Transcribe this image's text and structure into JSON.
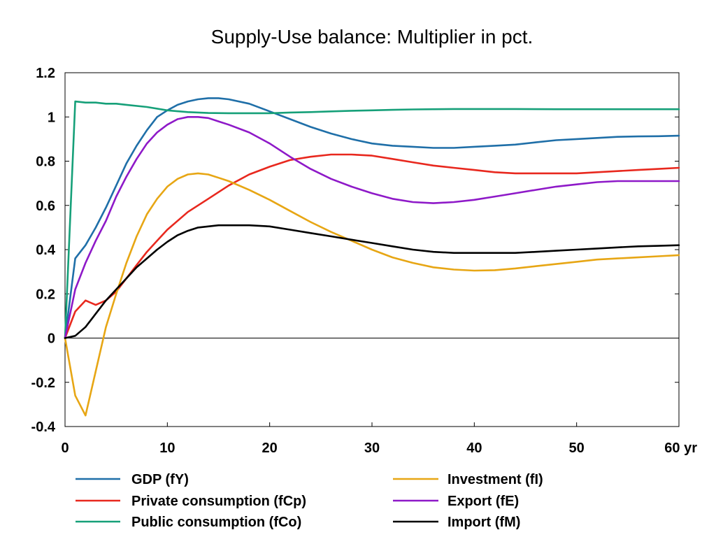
{
  "chart_data": {
    "type": "line",
    "title": "Supply-Use balance: Multiplier in pct.",
    "x_unit_label": "yr",
    "xlim": [
      0,
      60
    ],
    "ylim": [
      -0.4,
      1.2
    ],
    "x_ticks": [
      0,
      10,
      20,
      30,
      40,
      50,
      60
    ],
    "x_tick_labels": [
      "0",
      "10",
      "20",
      "30",
      "40",
      "50",
      "60 yr"
    ],
    "y_ticks": [
      -0.4,
      -0.2,
      0,
      0.2,
      0.4,
      0.6,
      0.8,
      1,
      1.2
    ],
    "y_tick_labels": [
      "-0.4",
      "-0.2",
      "0",
      "0.2",
      "0.4",
      "0.6",
      "0.8",
      "1",
      "1.2"
    ],
    "grid": false,
    "zero_line": true,
    "legend_position": "bottom",
    "series": [
      {
        "name": "GDP (fY)",
        "color": "#1f6fa8",
        "x": [
          0,
          1,
          2,
          3,
          4,
          5,
          6,
          7,
          8,
          9,
          10,
          11,
          12,
          13,
          14,
          15,
          16,
          18,
          20,
          22,
          24,
          26,
          28,
          30,
          32,
          34,
          36,
          38,
          40,
          42,
          44,
          46,
          48,
          50,
          52,
          54,
          56,
          58,
          60
        ],
        "y": [
          0,
          0.36,
          0.42,
          0.5,
          0.59,
          0.69,
          0.79,
          0.87,
          0.94,
          1.0,
          1.03,
          1.055,
          1.07,
          1.08,
          1.085,
          1.085,
          1.08,
          1.06,
          1.025,
          0.99,
          0.955,
          0.925,
          0.9,
          0.88,
          0.87,
          0.865,
          0.86,
          0.86,
          0.865,
          0.87,
          0.875,
          0.885,
          0.895,
          0.9,
          0.905,
          0.91,
          0.912,
          0.913,
          0.915
        ]
      },
      {
        "name": "Private consumption (fCp)",
        "color": "#e8281e",
        "x": [
          0,
          1,
          2,
          3,
          4,
          5,
          6,
          7,
          8,
          9,
          10,
          12,
          14,
          16,
          18,
          20,
          22,
          24,
          26,
          28,
          30,
          32,
          34,
          36,
          38,
          40,
          42,
          44,
          46,
          48,
          50,
          52,
          54,
          56,
          58,
          60
        ],
        "y": [
          0,
          0.12,
          0.17,
          0.15,
          0.17,
          0.21,
          0.27,
          0.33,
          0.39,
          0.44,
          0.49,
          0.57,
          0.63,
          0.69,
          0.74,
          0.775,
          0.805,
          0.82,
          0.83,
          0.83,
          0.825,
          0.81,
          0.795,
          0.78,
          0.77,
          0.76,
          0.75,
          0.745,
          0.745,
          0.745,
          0.745,
          0.75,
          0.755,
          0.76,
          0.765,
          0.77
        ]
      },
      {
        "name": "Public consumption (fCo)",
        "color": "#16a079",
        "x": [
          0,
          1,
          2,
          3,
          4,
          5,
          6,
          8,
          10,
          12,
          14,
          16,
          18,
          20,
          22,
          24,
          26,
          28,
          30,
          32,
          34,
          36,
          38,
          40,
          44,
          48,
          52,
          56,
          60
        ],
        "y": [
          0,
          1.07,
          1.065,
          1.065,
          1.06,
          1.06,
          1.055,
          1.045,
          1.03,
          1.022,
          1.018,
          1.017,
          1.017,
          1.017,
          1.02,
          1.022,
          1.025,
          1.028,
          1.03,
          1.032,
          1.034,
          1.035,
          1.036,
          1.036,
          1.036,
          1.035,
          1.035,
          1.035,
          1.035
        ]
      },
      {
        "name": "Investment (fI)",
        "color": "#e7a614",
        "x": [
          0,
          1,
          2,
          3,
          4,
          5,
          6,
          7,
          8,
          9,
          10,
          11,
          12,
          13,
          14,
          15,
          16,
          18,
          20,
          22,
          24,
          26,
          28,
          30,
          32,
          34,
          36,
          38,
          40,
          42,
          44,
          46,
          48,
          50,
          52,
          54,
          56,
          58,
          60
        ],
        "y": [
          0,
          -0.26,
          -0.35,
          -0.15,
          0.05,
          0.2,
          0.34,
          0.46,
          0.56,
          0.63,
          0.685,
          0.72,
          0.74,
          0.745,
          0.74,
          0.725,
          0.71,
          0.67,
          0.625,
          0.575,
          0.525,
          0.48,
          0.44,
          0.4,
          0.365,
          0.34,
          0.32,
          0.31,
          0.305,
          0.307,
          0.315,
          0.325,
          0.335,
          0.345,
          0.355,
          0.36,
          0.365,
          0.37,
          0.375
        ]
      },
      {
        "name": "Export (fE)",
        "color": "#8e19c8",
        "x": [
          0,
          1,
          2,
          3,
          4,
          5,
          6,
          7,
          8,
          9,
          10,
          11,
          12,
          13,
          14,
          15,
          16,
          18,
          20,
          22,
          24,
          26,
          28,
          30,
          32,
          34,
          36,
          38,
          40,
          42,
          44,
          46,
          48,
          50,
          52,
          54,
          56,
          58,
          60
        ],
        "y": [
          0,
          0.22,
          0.34,
          0.44,
          0.53,
          0.64,
          0.73,
          0.81,
          0.88,
          0.93,
          0.965,
          0.99,
          1.0,
          1.0,
          0.995,
          0.98,
          0.965,
          0.93,
          0.88,
          0.82,
          0.765,
          0.72,
          0.685,
          0.655,
          0.63,
          0.615,
          0.61,
          0.615,
          0.625,
          0.64,
          0.655,
          0.67,
          0.685,
          0.695,
          0.705,
          0.71,
          0.71,
          0.71,
          0.71
        ]
      },
      {
        "name": "Import (fM)",
        "color": "#000000",
        "x": [
          0,
          1,
          2,
          3,
          4,
          5,
          6,
          7,
          8,
          9,
          10,
          11,
          12,
          13,
          14,
          15,
          16,
          18,
          20,
          22,
          24,
          26,
          28,
          30,
          32,
          34,
          36,
          38,
          40,
          42,
          44,
          46,
          48,
          50,
          52,
          54,
          56,
          58,
          60
        ],
        "y": [
          0,
          0.01,
          0.05,
          0.11,
          0.17,
          0.22,
          0.27,
          0.32,
          0.36,
          0.4,
          0.435,
          0.465,
          0.485,
          0.5,
          0.505,
          0.51,
          0.51,
          0.51,
          0.505,
          0.49,
          0.475,
          0.46,
          0.445,
          0.43,
          0.415,
          0.4,
          0.39,
          0.385,
          0.385,
          0.385,
          0.385,
          0.39,
          0.395,
          0.4,
          0.405,
          0.41,
          0.415,
          0.417,
          0.42
        ]
      }
    ]
  }
}
